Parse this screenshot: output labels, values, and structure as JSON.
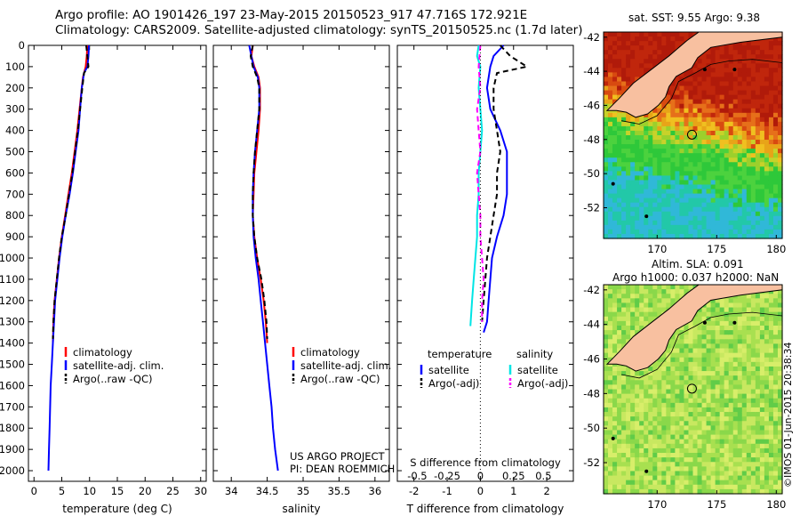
{
  "title": {
    "line1": "Argo profile: AO 1901426_197 23-May-2015 20150523_917 47.716S 172.921E",
    "line2": "Climatology: CARS2009. Satellite-adjusted climatology: synTS_20150525.nc (1.7d later)"
  },
  "footer": {
    "project_line1": "US ARGO PROJECT",
    "project_line2": "PI: DEAN ROEMMICH",
    "watermark": "©IMOS 01-Jun-2015 20:38:34"
  },
  "map_headers": {
    "sst": "sat. SST: 9.55 Argo: 9.38",
    "sla_line1": "Altim. SLA: 0.091",
    "sla_line2": "Argo h1000: 0.037 h2000: NaN"
  },
  "colors": {
    "climatology": "#ff0000",
    "satellite": "#0000ff",
    "argo": "#000000",
    "sal_satellite": "#00e5e5",
    "sal_argo": "#ff00ff",
    "land": "#f8c0a0"
  },
  "chart_data": [
    {
      "type": "line",
      "panel": "temperature",
      "xlabel": "temperature (deg C)",
      "ylabel": "",
      "xlim": [
        -1,
        31
      ],
      "ylim": [
        2050,
        0
      ],
      "x_ticks": [
        0,
        5,
        10,
        15,
        20,
        25,
        30
      ],
      "y_ticks": [
        0,
        100,
        200,
        300,
        400,
        500,
        600,
        700,
        800,
        900,
        1000,
        1100,
        1200,
        1300,
        1400,
        1500,
        1600,
        1700,
        1800,
        1900,
        2000
      ],
      "legend": [
        "climatology",
        "satellite-adj. clim.",
        "Argo(..raw -QC)"
      ],
      "series": [
        {
          "name": "climatology",
          "color": "#ff0000",
          "dash": false,
          "points": [
            [
              9.6,
              0
            ],
            [
              9.5,
              50
            ],
            [
              9.3,
              100
            ],
            [
              8.8,
              150
            ],
            [
              8.6,
              200
            ],
            [
              8.2,
              300
            ],
            [
              7.8,
              400
            ],
            [
              7.3,
              500
            ],
            [
              6.8,
              600
            ],
            [
              6.2,
              700
            ],
            [
              5.6,
              800
            ],
            [
              5.0,
              900
            ],
            [
              4.5,
              1000
            ],
            [
              4.1,
              1100
            ],
            [
              3.7,
              1200
            ],
            [
              3.5,
              1300
            ],
            [
              3.4,
              1400
            ]
          ]
        },
        {
          "name": "satellite-adj. clim.",
          "color": "#0000ff",
          "dash": false,
          "points": [
            [
              9.9,
              0
            ],
            [
              9.8,
              50
            ],
            [
              9.6,
              100
            ],
            [
              9.0,
              130
            ],
            [
              8.6,
              200
            ],
            [
              8.3,
              300
            ],
            [
              8.0,
              400
            ],
            [
              7.5,
              500
            ],
            [
              7.0,
              600
            ],
            [
              6.4,
              700
            ],
            [
              5.7,
              800
            ],
            [
              5.1,
              900
            ],
            [
              4.6,
              1000
            ],
            [
              4.2,
              1100
            ],
            [
              3.8,
              1200
            ],
            [
              3.6,
              1300
            ],
            [
              3.4,
              1400
            ],
            [
              3.2,
              1500
            ],
            [
              3.0,
              1600
            ],
            [
              2.9,
              1700
            ],
            [
              2.8,
              1800
            ],
            [
              2.7,
              1900
            ],
            [
              2.6,
              2000
            ]
          ]
        },
        {
          "name": "Argo(..raw -QC)",
          "color": "#000000",
          "dash": true,
          "points": [
            [
              9.4,
              0
            ],
            [
              9.6,
              50
            ],
            [
              9.8,
              100
            ],
            [
              9.0,
              130
            ],
            [
              8.7,
              200
            ],
            [
              8.3,
              300
            ],
            [
              7.9,
              400
            ],
            [
              7.4,
              500
            ],
            [
              6.9,
              600
            ],
            [
              6.3,
              700
            ],
            [
              5.7,
              800
            ],
            [
              5.0,
              900
            ],
            [
              4.5,
              1000
            ],
            [
              4.1,
              1100
            ],
            [
              3.7,
              1200
            ],
            [
              3.5,
              1300
            ],
            [
              3.4,
              1380
            ]
          ]
        }
      ]
    },
    {
      "type": "line",
      "panel": "salinity",
      "xlabel": "salinity",
      "ylabel": "",
      "xlim": [
        33.75,
        36.2
      ],
      "ylim": [
        2050,
        0
      ],
      "x_ticks": [
        34,
        34.5,
        35,
        35.5,
        36
      ],
      "legend": [
        "climatology",
        "satellite-adj. clim.",
        "Argo(..raw -QC)"
      ],
      "series": [
        {
          "name": "climatology",
          "color": "#ff0000",
          "dash": false,
          "points": [
            [
              34.3,
              0
            ],
            [
              34.28,
              50
            ],
            [
              34.32,
              100
            ],
            [
              34.38,
              150
            ],
            [
              34.4,
              200
            ],
            [
              34.4,
              300
            ],
            [
              34.38,
              400
            ],
            [
              34.35,
              500
            ],
            [
              34.32,
              600
            ],
            [
              34.31,
              700
            ],
            [
              34.3,
              800
            ],
            [
              34.32,
              900
            ],
            [
              34.36,
              1000
            ],
            [
              34.41,
              1100
            ],
            [
              34.45,
              1200
            ],
            [
              34.48,
              1300
            ],
            [
              34.5,
              1400
            ]
          ]
        },
        {
          "name": "satellite-adj. clim.",
          "color": "#0000ff",
          "dash": false,
          "points": [
            [
              34.25,
              0
            ],
            [
              34.28,
              50
            ],
            [
              34.31,
              100
            ],
            [
              34.37,
              150
            ],
            [
              34.39,
              200
            ],
            [
              34.39,
              300
            ],
            [
              34.36,
              400
            ],
            [
              34.33,
              500
            ],
            [
              34.31,
              600
            ],
            [
              34.3,
              700
            ],
            [
              34.3,
              800
            ],
            [
              34.31,
              900
            ],
            [
              34.34,
              1000
            ],
            [
              34.38,
              1100
            ],
            [
              34.41,
              1200
            ],
            [
              34.44,
              1300
            ],
            [
              34.47,
              1400
            ],
            [
              34.5,
              1500
            ],
            [
              34.53,
              1600
            ],
            [
              34.56,
              1700
            ],
            [
              34.58,
              1800
            ],
            [
              34.61,
              1900
            ],
            [
              34.65,
              2000
            ]
          ]
        },
        {
          "name": "Argo(..raw -QC)",
          "color": "#000000",
          "dash": true,
          "points": [
            [
              34.3,
              0
            ],
            [
              34.27,
              50
            ],
            [
              34.3,
              100
            ],
            [
              34.36,
              150
            ],
            [
              34.39,
              200
            ],
            [
              34.39,
              300
            ],
            [
              34.36,
              400
            ],
            [
              34.33,
              500
            ],
            [
              34.31,
              600
            ],
            [
              34.3,
              700
            ],
            [
              34.3,
              800
            ],
            [
              34.32,
              900
            ],
            [
              34.36,
              1000
            ],
            [
              34.42,
              1100
            ],
            [
              34.46,
              1200
            ],
            [
              34.49,
              1300
            ],
            [
              34.5,
              1380
            ]
          ]
        }
      ]
    },
    {
      "type": "line",
      "panel": "difference",
      "xlabel": "T difference from climatology",
      "x2label": "S difference from climatology",
      "xlim": [
        -2.5,
        2.8
      ],
      "ylim": [
        2050,
        0
      ],
      "x_ticks": [
        -2,
        -1,
        0,
        1,
        2
      ],
      "x2_ticks": [
        "-0.5",
        "-0.25",
        "0",
        "0.25",
        "0.5"
      ],
      "legend": {
        "temperature": [
          "satellite",
          "Argo(-adj)"
        ],
        "salinity": [
          "satellite",
          "Argo(-adj)"
        ],
        "headers": [
          "temperature",
          "salinity"
        ]
      },
      "series": [
        {
          "name": "satellite",
          "group": "temperature",
          "color": "#0000ff",
          "dash": false,
          "points": [
            [
              0.7,
              0
            ],
            [
              0.4,
              50
            ],
            [
              0.3,
              100
            ],
            [
              0.2,
              200
            ],
            [
              0.3,
              300
            ],
            [
              0.6,
              400
            ],
            [
              0.8,
              500
            ],
            [
              0.8,
              600
            ],
            [
              0.8,
              700
            ],
            [
              0.7,
              800
            ],
            [
              0.5,
              900
            ],
            [
              0.35,
              1000
            ],
            [
              0.3,
              1100
            ],
            [
              0.25,
              1200
            ],
            [
              0.2,
              1300
            ],
            [
              0.1,
              1350
            ]
          ]
        },
        {
          "name": "Argo(-adj)",
          "group": "temperature",
          "color": "#000000",
          "dash": true,
          "points": [
            [
              0.6,
              0
            ],
            [
              0.9,
              50
            ],
            [
              1.4,
              100
            ],
            [
              0.5,
              130
            ],
            [
              0.4,
              200
            ],
            [
              0.4,
              300
            ],
            [
              0.5,
              400
            ],
            [
              0.6,
              500
            ],
            [
              0.5,
              600
            ],
            [
              0.5,
              700
            ],
            [
              0.4,
              800
            ],
            [
              0.3,
              900
            ],
            [
              0.2,
              1000
            ],
            [
              0.15,
              1100
            ],
            [
              0.1,
              1200
            ],
            [
              0.05,
              1300
            ]
          ]
        },
        {
          "name": "satellite",
          "group": "salinity",
          "color": "#00e5e5",
          "dash": false,
          "points": [
            [
              -0.05,
              0
            ],
            [
              -0.1,
              50
            ],
            [
              0.0,
              100
            ],
            [
              -0.05,
              200
            ],
            [
              0.0,
              300
            ],
            [
              0.05,
              400
            ],
            [
              0.0,
              500
            ],
            [
              -0.05,
              600
            ],
            [
              -0.05,
              700
            ],
            [
              -0.1,
              800
            ],
            [
              -0.1,
              900
            ],
            [
              -0.15,
              1000
            ],
            [
              -0.2,
              1100
            ],
            [
              -0.25,
              1200
            ],
            [
              -0.3,
              1320
            ]
          ]
        },
        {
          "name": "Argo(-adj)",
          "group": "salinity",
          "color": "#ff00ff",
          "dash": true,
          "points": [
            [
              0.0,
              0
            ],
            [
              -0.05,
              100
            ],
            [
              0.0,
              200
            ],
            [
              -0.1,
              300
            ],
            [
              -0.05,
              400
            ],
            [
              0.0,
              500
            ],
            [
              -0.1,
              600
            ],
            [
              -0.05,
              700
            ],
            [
              0.0,
              800
            ],
            [
              0.0,
              900
            ],
            [
              0.05,
              1000
            ],
            [
              0.1,
              1100
            ],
            [
              0.05,
              1200
            ],
            [
              0.05,
              1300
            ]
          ]
        }
      ]
    },
    {
      "type": "heatmap",
      "panel": "sst_map",
      "x_ticks": [
        170,
        175,
        180
      ],
      "y_ticks": [
        -42,
        -44,
        -46,
        -48,
        -50,
        -52
      ],
      "xlim": [
        165.5,
        180.5
      ],
      "ylim": [
        -53.8,
        -41.7
      ],
      "argo_position": [
        172.921,
        -47.716
      ]
    },
    {
      "type": "heatmap",
      "panel": "sla_map",
      "x_ticks": [
        170,
        175,
        180
      ],
      "y_ticks": [
        -42,
        -44,
        -46,
        -48,
        -50,
        -52
      ],
      "xlim": [
        165.5,
        180.5
      ],
      "ylim": [
        -53.8,
        -41.7
      ],
      "argo_position": [
        172.921,
        -47.716
      ]
    }
  ]
}
